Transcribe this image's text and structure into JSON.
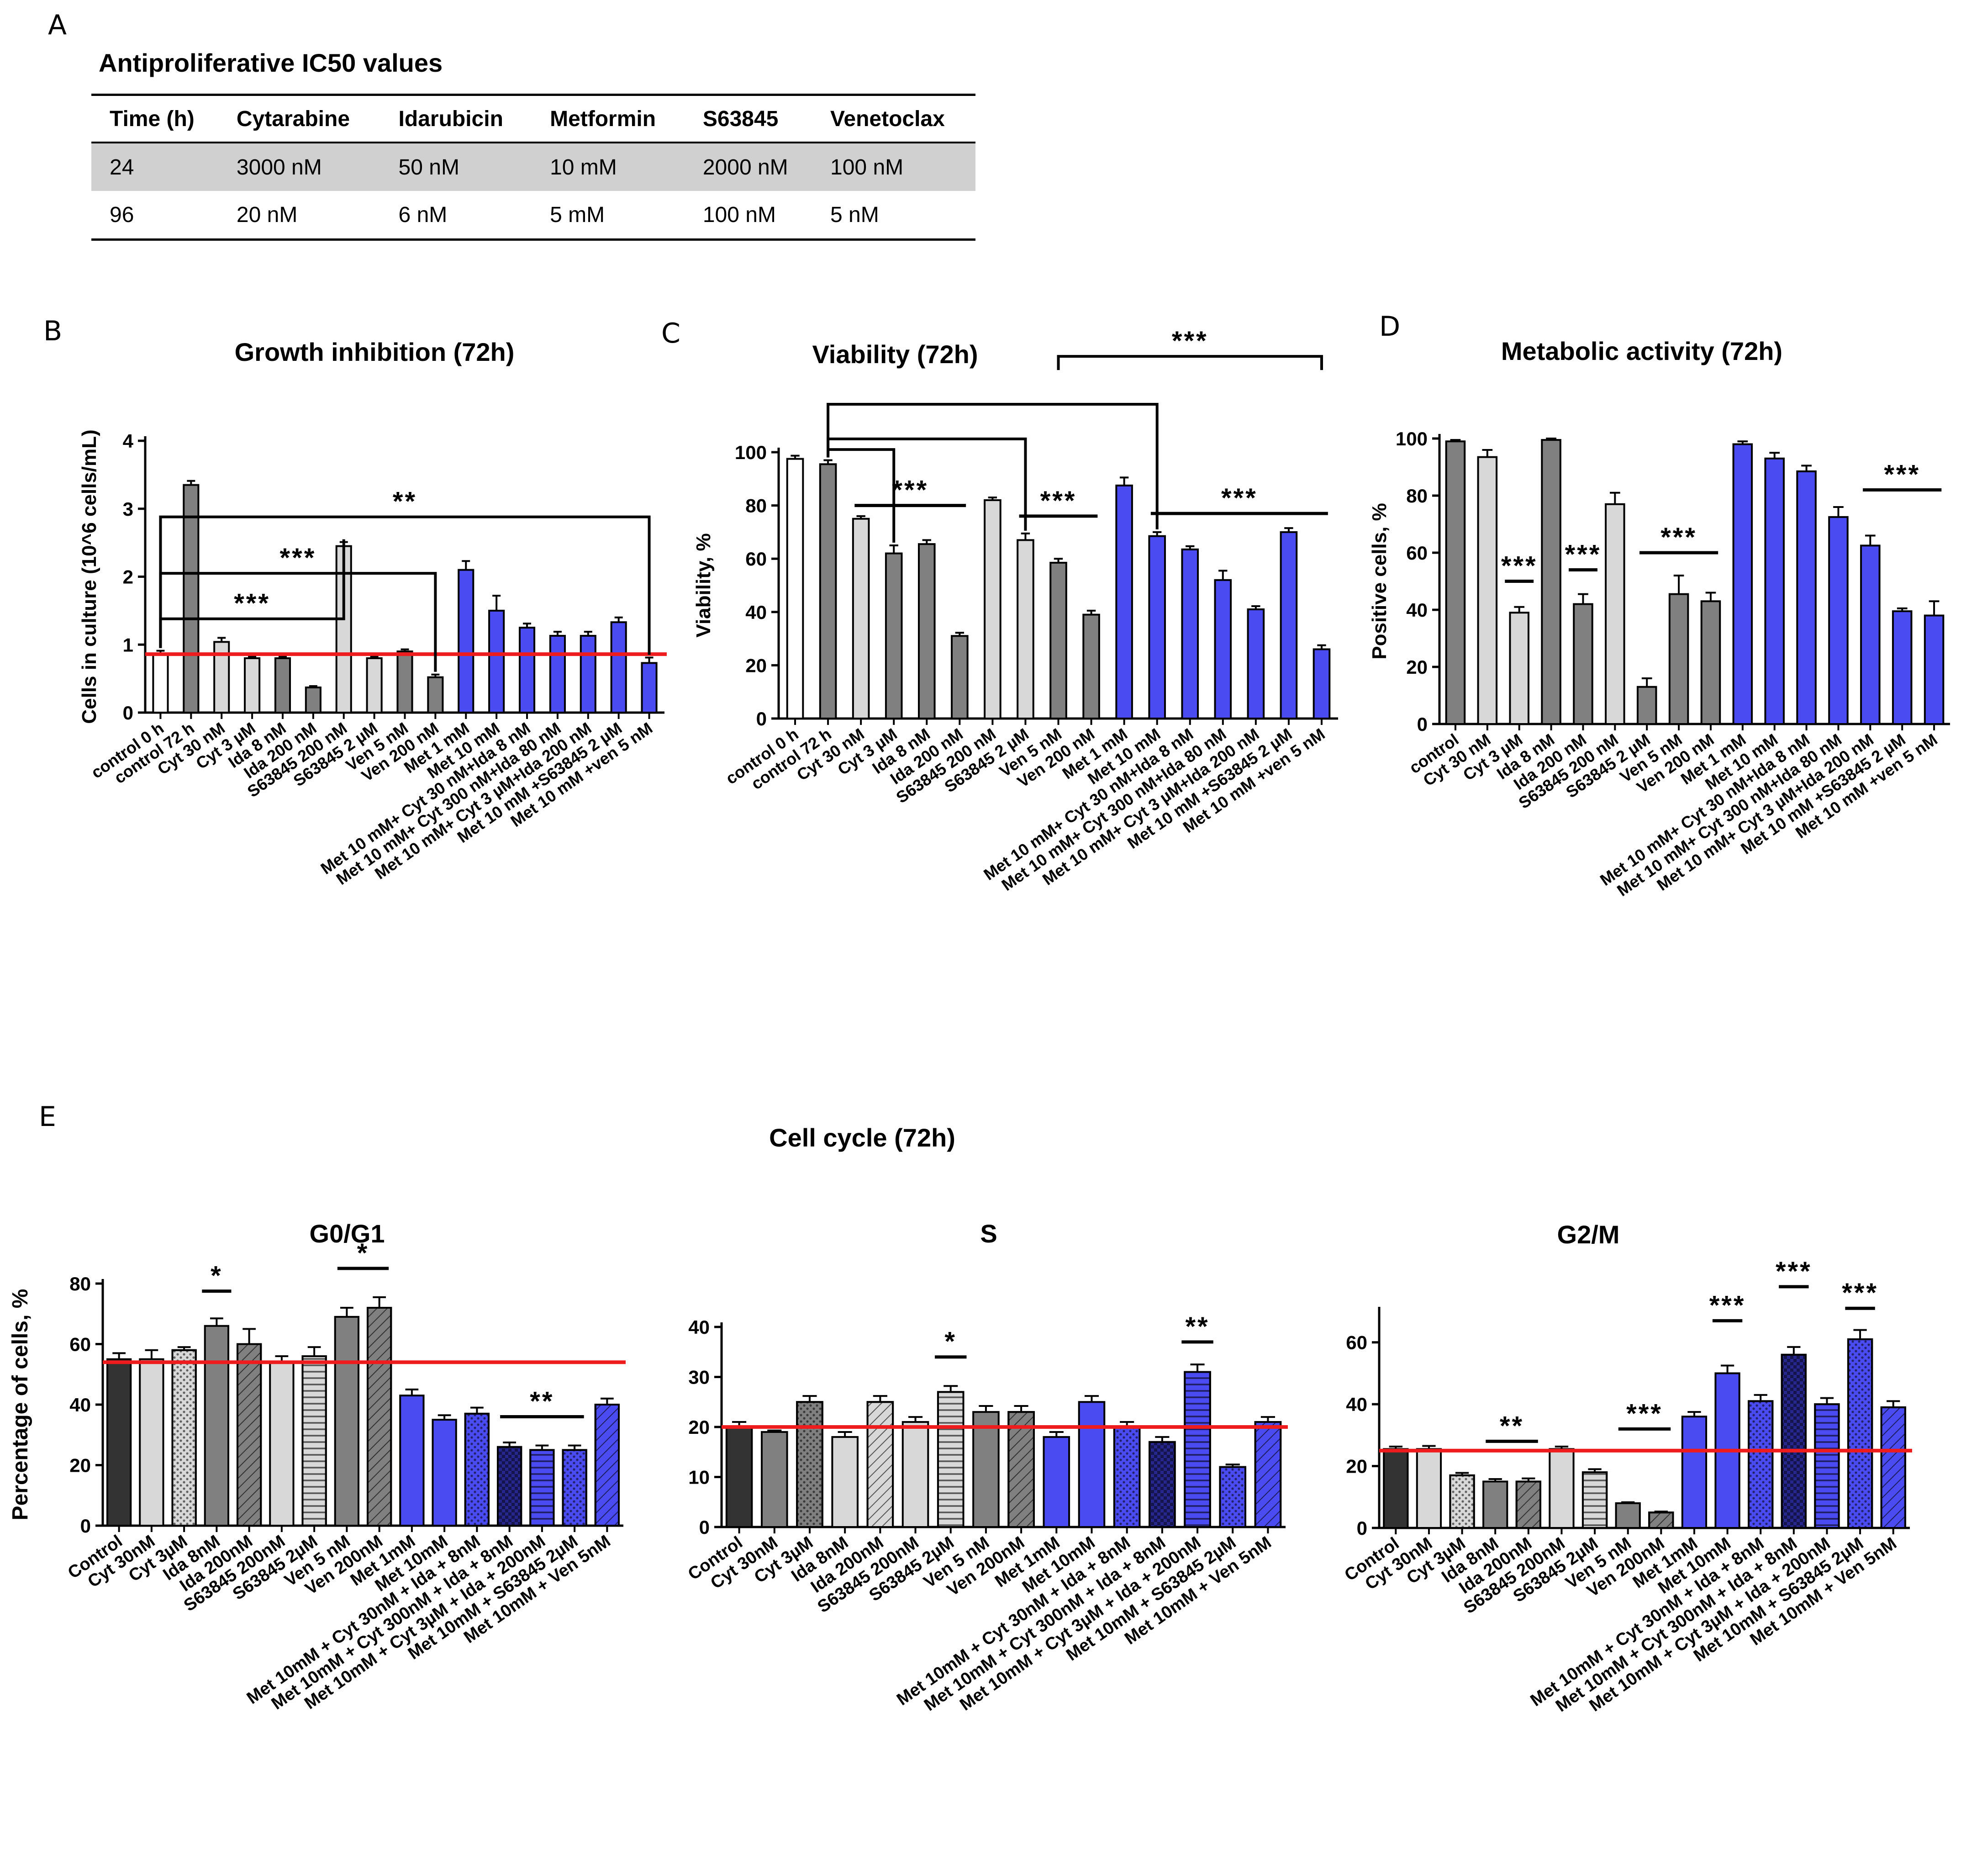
{
  "panels": {
    "A": "A",
    "B": "B",
    "C": "C",
    "D": "D",
    "E": "E"
  },
  "table": {
    "title": "Antiproliferative IC50 values",
    "headers": [
      "Time (h)",
      "Cytarabine",
      "Idarubicin",
      "Metformin",
      "S63845",
      "Venetoclax"
    ],
    "rows": [
      [
        "24",
        "3000 nM",
        "50 nM",
        "10 mM",
        "2000 nM",
        "100 nM"
      ],
      [
        "96",
        "20 nM",
        "6 nM",
        "5 mM",
        "100 nM",
        "5 nM"
      ]
    ]
  },
  "section_e_title": "Cell cycle (72h)",
  "colors": {
    "white": "#ffffff",
    "light": "#d8d8d8",
    "dark": "#808080",
    "black": "#333333",
    "blue": "#4b4bf2",
    "navy": "#26268c",
    "refline": "#ee1c1c"
  },
  "chart_data": [
    {
      "id": "growth",
      "type": "bar",
      "title": "Growth inhibition (72h)",
      "ylabel": "Cells in culture (10^6 cells/mL)",
      "ylim": [
        0,
        4
      ],
      "yticks": [
        0,
        1,
        2,
        3,
        4
      ],
      "reference_line": 0.86,
      "categories": [
        "control 0 h",
        "control 72 h",
        "Cyt 30 nM",
        "Cyt 3 µM",
        "Ida 8 nM",
        "Ida 200 nM",
        "S63845 200 nM",
        "S63845 2 µM",
        "Ven 5 nM",
        "Ven 200 nM",
        "Met 1 mM",
        "Met 10 mM",
        "Met 10 mM+ Cyt 30 nM+Ida 8 nM",
        "Met 10 mM+ Cyt 300 nM+Ida 80 nM",
        "Met 10 mM+ Cyt 3 µM+Ida 200 nM",
        "Met 10 mM +S63845 2 µM",
        "Met 10 mM +ven 5 nM"
      ],
      "values": [
        0.86,
        3.35,
        1.04,
        0.8,
        0.8,
        0.37,
        2.45,
        0.8,
        0.9,
        0.52,
        2.1,
        1.5,
        1.25,
        1.13,
        1.13,
        1.33,
        0.73
      ],
      "errors": [
        0.05,
        0.06,
        0.06,
        0.02,
        0.02,
        0.02,
        0.06,
        0.02,
        0.03,
        0.04,
        0.13,
        0.22,
        0.06,
        0.06,
        0.06,
        0.07,
        0.08
      ],
      "colors": [
        "white",
        "dark",
        "light",
        "light",
        "dark",
        "dark",
        "light",
        "light",
        "dark",
        "dark",
        "blue",
        "blue",
        "blue",
        "blue",
        "blue",
        "blue",
        "blue"
      ],
      "brackets": [
        {
          "type": "nest",
          "from": 0,
          "to": 16,
          "y": 2.88,
          "label": "**"
        },
        {
          "type": "nest",
          "from": 0,
          "to": 9,
          "y": 2.05,
          "label": "***"
        },
        {
          "type": "nest",
          "from": 0,
          "to": 6,
          "y": 1.38,
          "label": "***"
        }
      ]
    },
    {
      "id": "viability",
      "type": "bar",
      "title": "Viability (72h)",
      "ylabel": "Viability, %",
      "ylim": [
        0,
        100
      ],
      "yticks": [
        0,
        20,
        40,
        60,
        80,
        100
      ],
      "categories": [
        "control 0 h",
        "control 72 h",
        "Cyt 30 nM",
        "Cyt 3 µM",
        "Ida 8 nM",
        "Ida 200 nM",
        "S63845 200 nM",
        "S63845 2 µM",
        "Ven 5 nM",
        "Ven 200 nM",
        "Met 1 mM",
        "Met 10 mM",
        "Met 10 mM+ Cyt 30 nM+Ida 8 nM",
        "Met 10 mM+ Cyt 300 nM+Ida 80 nM",
        "Met 10 mM+ Cyt 3 µM+Ida 200 nM",
        "Met 10 mM +S63845 2 µM",
        "Met 10 mM +ven 5 nM"
      ],
      "values": [
        97.5,
        95.5,
        75,
        62,
        65.5,
        31,
        82,
        67,
        58.5,
        39,
        87.5,
        68.5,
        63.5,
        52,
        41,
        70,
        26
      ],
      "errors": [
        1.2,
        1.5,
        1,
        3,
        1.5,
        1.2,
        1,
        2.5,
        1.5,
        1.5,
        3,
        1.5,
        1.2,
        3.5,
        1.2,
        1.5,
        1.5
      ],
      "colors": [
        "white",
        "dark",
        "light",
        "dark",
        "dark",
        "dark",
        "light",
        "light",
        "dark",
        "dark",
        "blue",
        "blue",
        "blue",
        "blue",
        "blue",
        "blue",
        "blue"
      ],
      "brackets": [
        {
          "type": "nest",
          "from": 1,
          "to": 3,
          "y": 101,
          "label": ""
        },
        {
          "type": "nest",
          "from": 1,
          "to": 7,
          "y": 105,
          "label": ""
        },
        {
          "type": "nest",
          "from": 1,
          "to": 11,
          "y": 118,
          "label": ""
        },
        {
          "type": "line",
          "from": 2,
          "to": 5,
          "y": 80,
          "label": "***"
        },
        {
          "type": "line",
          "from": 7,
          "to": 9,
          "y": 76,
          "label": "***"
        },
        {
          "type": "line",
          "from": 11,
          "to": 16,
          "y": 77,
          "label": "***"
        },
        {
          "type": "top",
          "from": 8,
          "to": 16,
          "y": 136,
          "label": "***"
        }
      ]
    },
    {
      "id": "metabolic",
      "type": "bar",
      "title": "Metabolic activity (72h)",
      "ylabel": "Positive cells, %",
      "ylim": [
        0,
        100
      ],
      "yticks": [
        0,
        20,
        40,
        60,
        80,
        100
      ],
      "categories": [
        "control",
        "Cyt 30 nM",
        "Cyt 3 µM",
        "Ida 8 nM",
        "Ida 200 nM",
        "S63845 200 nM",
        "S63845 2 µM",
        "Ven 5 nM",
        "Ven 200 nM",
        "Met 1 mM",
        "Met 10 mM",
        "Met 10 mM+ Cyt 30 nM+Ida 8 nM",
        "Met 10 mM+ Cyt 300 nM+Ida 80 nM",
        "Met 10 mM+ Cyt 3 µM+Ida 200 nM",
        "Met 10 mM +S63845 2 µM",
        "Met 10 mM +ven 5 nM"
      ],
      "values": [
        99,
        93.5,
        39,
        99.5,
        42,
        77,
        13,
        45.5,
        43,
        98,
        93,
        88.5,
        72.5,
        62.5,
        39.5,
        38
      ],
      "errors": [
        0.5,
        2.5,
        2,
        0.5,
        3.5,
        4,
        3,
        6.5,
        3,
        1,
        2,
        2,
        3.5,
        3.5,
        1,
        5
      ],
      "colors": [
        "dark",
        "light",
        "light",
        "dark",
        "dark",
        "light",
        "dark",
        "dark",
        "dark",
        "blue",
        "blue",
        "blue",
        "blue",
        "blue",
        "blue",
        "blue"
      ],
      "brackets": [
        {
          "type": "line",
          "from": 2,
          "to": 2,
          "y": 50,
          "label": "***"
        },
        {
          "type": "line",
          "from": 4,
          "to": 4,
          "y": 54,
          "label": "***"
        },
        {
          "type": "line",
          "from": 6,
          "to": 8,
          "y": 60,
          "label": "***"
        },
        {
          "type": "line",
          "from": 13,
          "to": 15,
          "y": 82,
          "label": "***"
        }
      ]
    },
    {
      "id": "g0g1",
      "type": "bar",
      "title": "G0/G1",
      "ylabel": "Percentage of cells, %",
      "ylim": [
        0,
        80
      ],
      "yticks": [
        0,
        20,
        40,
        60,
        80
      ],
      "reference_line": 54,
      "categories": [
        "Control",
        "Cyt 30nM",
        "Cyt 3µM",
        "Ida 8nM",
        "Ida 200nM",
        "S63845 200nM",
        "S63845 2µM",
        "Ven 5 nM",
        "Ven 200nM",
        "Met 1mM",
        "Met 10mM",
        "Met 10mM + Cyt 30nM + Ida + 8nM",
        "Met 10mM + Cyt 300nM + Ida + 8nM",
        "Met 10mM + Cyt 3µM + Ida + 200nM",
        "Met 10mM + S63845 2µM",
        "Met 10mM + Ven 5nM"
      ],
      "values": [
        55,
        55,
        58,
        66,
        60,
        54,
        56,
        69,
        72,
        43,
        35,
        37,
        26,
        25,
        25,
        40
      ],
      "errors": [
        2,
        3,
        1,
        2.5,
        5,
        2,
        3,
        3,
        3.5,
        2,
        1.5,
        2,
        1.5,
        1.5,
        1.5,
        2
      ],
      "colors": [
        "black",
        "light",
        "light",
        "dark",
        "dark",
        "light",
        "light",
        "dark",
        "dark",
        "blue",
        "blue",
        "blue",
        "navy",
        "blue",
        "blue",
        "blue"
      ],
      "patterns": [
        "none",
        "none",
        "dots",
        "none",
        "diag",
        "none",
        "hstripes",
        "none",
        "diag",
        "none",
        "none",
        "dots",
        "check",
        "hstripes",
        "dots",
        "diag"
      ],
      "brackets": [
        {
          "type": "line",
          "from": 3,
          "to": 3,
          "y": 77.5,
          "label": "*"
        },
        {
          "type": "line",
          "from": 7,
          "to": 8,
          "y": 85,
          "label": "*"
        },
        {
          "type": "line",
          "from": 12,
          "to": 14,
          "y": 36,
          "label": "**"
        }
      ]
    },
    {
      "id": "s",
      "type": "bar",
      "title": "S",
      "ylabel": "",
      "ylim": [
        0,
        40
      ],
      "yticks": [
        0,
        10,
        20,
        30,
        40
      ],
      "reference_line": 20,
      "categories": [
        "Control",
        "Cyt 30nM",
        "Cyt 3µM",
        "Ida 8nM",
        "Ida 200nM",
        "S63845 200nM",
        "S63845 2µM",
        "Ven 5 nM",
        "Ven 200nM",
        "Met 1mM",
        "Met 10mM",
        "Met 10mM + Cyt 30nM + Ida + 8nM",
        "Met 10mM + Cyt 300nM + Ida + 8nM",
        "Met 10mM + Cyt 3µM + Ida + 200nM",
        "Met 10mM + S63845 2µM",
        "Met 10mM + Ven 5nM"
      ],
      "values": [
        20,
        19,
        25,
        18,
        25,
        21,
        27,
        23,
        23,
        18,
        25,
        20,
        17,
        31,
        12,
        21
      ],
      "errors": [
        1,
        0.3,
        1.2,
        1,
        1.2,
        1,
        1.2,
        1.2,
        1.2,
        1,
        1.2,
        1,
        1,
        1.5,
        0.5,
        1
      ],
      "colors": [
        "black",
        "dark",
        "dark",
        "light",
        "light",
        "light",
        "light",
        "dark",
        "dark",
        "blue",
        "blue",
        "blue",
        "navy",
        "blue",
        "blue",
        "blue"
      ],
      "patterns": [
        "none",
        "none",
        "dots",
        "none",
        "diag",
        "none",
        "hstripes",
        "none",
        "diag",
        "none",
        "none",
        "dots",
        "check",
        "hstripes",
        "dots",
        "diag"
      ],
      "brackets": [
        {
          "type": "line",
          "from": 6,
          "to": 6,
          "y": 34,
          "label": "*"
        },
        {
          "type": "line",
          "from": 13,
          "to": 13,
          "y": 37,
          "label": "**"
        }
      ]
    },
    {
      "id": "g2m",
      "type": "bar",
      "title": "G2/M",
      "ylabel": "",
      "ylim": [
        0,
        70
      ],
      "yticks": [
        0,
        20,
        40,
        60
      ],
      "reference_line": 25,
      "categories": [
        "Control",
        "Cyt 30nM",
        "Cyt 3µM",
        "Ida 8nM",
        "Ida 200nM",
        "S63845 200nM",
        "S63845 2µM",
        "Ven 5 nM",
        "Ven 200nM",
        "Met 1mM",
        "Met 10mM",
        "Met 10mM + Cyt 30nM + Ida + 8nM",
        "Met 10mM + Cyt 300nM + Ida + 8nM",
        "Met 10mM + Cyt 3µM + Ida + 200nM",
        "Met 10mM + S63845 2µM",
        "Met 10mM + Ven 5nM"
      ],
      "values": [
        25.5,
        25.5,
        17,
        15,
        15,
        25.5,
        18,
        8,
        5,
        36,
        50,
        41,
        56,
        40,
        61,
        39
      ],
      "errors": [
        0.8,
        1,
        0.8,
        0.8,
        1,
        0.8,
        1,
        0.3,
        0.3,
        1.5,
        2.5,
        2,
        2.5,
        2,
        3,
        2
      ],
      "colors": [
        "black",
        "light",
        "light",
        "dark",
        "dark",
        "light",
        "light",
        "dark",
        "dark",
        "blue",
        "blue",
        "blue",
        "navy",
        "blue",
        "blue",
        "blue"
      ],
      "patterns": [
        "none",
        "none",
        "dots",
        "none",
        "diag",
        "none",
        "hstripes",
        "none",
        "diag",
        "none",
        "none",
        "dots",
        "check",
        "hstripes",
        "dots",
        "diag"
      ],
      "brackets": [
        {
          "type": "line",
          "from": 3,
          "to": 4,
          "y": 28,
          "label": "**"
        },
        {
          "type": "line",
          "from": 7,
          "to": 8,
          "y": 32,
          "label": "***"
        },
        {
          "type": "line",
          "from": 10,
          "to": 10,
          "y": 67,
          "label": "***"
        },
        {
          "type": "line",
          "from": 12,
          "to": 12,
          "y": 78,
          "label": "***"
        },
        {
          "type": "line",
          "from": 14,
          "to": 14,
          "y": 71,
          "label": "***"
        }
      ]
    }
  ]
}
